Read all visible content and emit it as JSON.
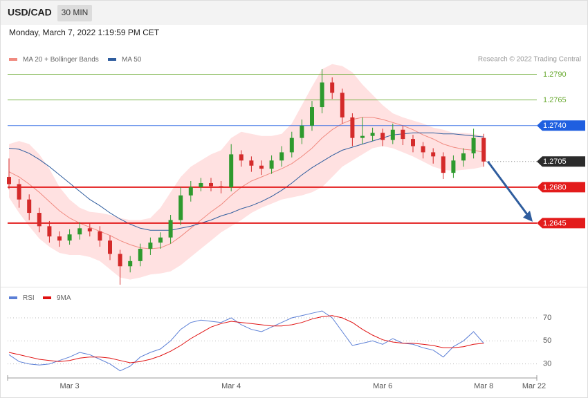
{
  "header": {
    "symbol": "USD/CAD",
    "interval": "30 MIN",
    "timestamp": "Monday, March 7, 2022 1:19:59 PM CET"
  },
  "chart_data": [
    {
      "type": "candlestick",
      "credit": "Research © 2022 Trading Central",
      "categories": [
        null,
        null,
        null,
        null,
        null,
        null,
        "Mar 3",
        null,
        null,
        null,
        null,
        null,
        null,
        null,
        null,
        null,
        null,
        null,
        null,
        null,
        null,
        null,
        "Mar 4",
        null,
        null,
        null,
        null,
        null,
        null,
        null,
        null,
        null,
        null,
        null,
        null,
        null,
        null,
        "Mar 6",
        null,
        null,
        null,
        null,
        null,
        null,
        null,
        null,
        null,
        "Mar 8"
      ],
      "x_end_label": "Mar 22",
      "open": [
        1.269,
        1.2683,
        1.2668,
        1.2655,
        1.2642,
        1.2632,
        1.2628,
        1.2634,
        1.264,
        1.2637,
        1.2628,
        1.2615,
        1.2603,
        1.2608,
        1.262,
        1.2626,
        1.2631,
        1.2648,
        1.2672,
        1.268,
        1.2684,
        1.2681,
        1.268,
        1.2712,
        1.2706,
        1.2701,
        1.2698,
        1.2706,
        1.2714,
        1.2728,
        1.274,
        1.2758,
        1.2782,
        1.2772,
        1.2748,
        1.2728,
        1.273,
        1.2733,
        1.2726,
        1.2736,
        1.2727,
        1.272,
        1.2714,
        1.271,
        1.2694,
        1.2706,
        1.2713,
        1.2728
      ],
      "high": [
        1.2708,
        1.2688,
        1.2673,
        1.266,
        1.2647,
        1.2637,
        1.2639,
        1.2646,
        1.2645,
        1.2642,
        1.2633,
        1.2619,
        1.2613,
        1.2625,
        1.2631,
        1.2636,
        1.2653,
        1.268,
        1.2686,
        1.2689,
        1.2689,
        1.2686,
        1.2722,
        1.2716,
        1.271,
        1.2706,
        1.2711,
        1.272,
        1.2734,
        1.2746,
        1.2764,
        1.2795,
        1.2787,
        1.2776,
        1.2752,
        1.2748,
        1.2738,
        1.2737,
        1.2742,
        1.274,
        1.2731,
        1.2724,
        1.2718,
        1.2714,
        1.2711,
        1.2718,
        1.2737,
        1.2732
      ],
      "low": [
        1.2678,
        1.266,
        1.2648,
        1.2636,
        1.2626,
        1.2622,
        1.2624,
        1.2629,
        1.2632,
        1.2622,
        1.2609,
        1.2585,
        1.2597,
        1.2603,
        1.2614,
        1.262,
        1.2625,
        1.2643,
        1.2666,
        1.2676,
        1.2676,
        1.2674,
        1.2676,
        1.27,
        1.2695,
        1.2692,
        1.2693,
        1.27,
        1.2709,
        1.2722,
        1.2735,
        1.2752,
        1.2766,
        1.2742,
        1.272,
        1.2722,
        1.2725,
        1.272,
        1.2722,
        1.2721,
        1.2714,
        1.2708,
        1.2703,
        1.2688,
        1.2689,
        1.27,
        1.2708,
        1.27
      ],
      "close": [
        1.2683,
        1.2668,
        1.2655,
        1.2642,
        1.2632,
        1.2628,
        1.2634,
        1.264,
        1.2637,
        1.2628,
        1.2615,
        1.2603,
        1.2608,
        1.262,
        1.2626,
        1.2631,
        1.2648,
        1.2672,
        1.268,
        1.2684,
        1.2681,
        1.268,
        1.2712,
        1.2706,
        1.2701,
        1.2698,
        1.2706,
        1.2714,
        1.2728,
        1.274,
        1.2758,
        1.2782,
        1.2772,
        1.2748,
        1.2728,
        1.273,
        1.2733,
        1.2726,
        1.2736,
        1.2727,
        1.272,
        1.2714,
        1.271,
        1.2694,
        1.2706,
        1.2713,
        1.2728,
        1.2705
      ],
      "up_color": "#2e9a2e",
      "down_color": "#d42a2a",
      "ylim": [
        1.2583,
        1.2822
      ],
      "overlays": [
        {
          "name": "MA 20 + Bollinger Bands",
          "color": "#f08a80",
          "band_color": "#ffe1e1",
          "values": [
            1.2695,
            1.269,
            1.2683,
            1.2675,
            1.2666,
            1.2657,
            1.265,
            1.2645,
            1.2641,
            1.2637,
            1.2633,
            1.2628,
            1.2624,
            1.2621,
            1.262,
            1.2621,
            1.2625,
            1.2632,
            1.264,
            1.2648,
            1.2656,
            1.2663,
            1.2672,
            1.268,
            1.2686,
            1.269,
            1.2694,
            1.2698,
            1.2703,
            1.271,
            1.2718,
            1.2728,
            1.2736,
            1.2742,
            1.2746,
            1.2748,
            1.2748,
            1.2746,
            1.2743,
            1.274,
            1.2736,
            1.2731,
            1.2727,
            1.2722,
            1.2719,
            1.2717,
            1.2716,
            1.2714
          ],
          "upper": [
            1.2722,
            1.2725,
            1.2722,
            1.2712,
            1.2698,
            1.268,
            1.2668,
            1.266,
            1.2656,
            1.2655,
            1.2653,
            1.265,
            1.2648,
            1.2648,
            1.265,
            1.266,
            1.2675,
            1.269,
            1.27,
            1.2706,
            1.2712,
            1.2716,
            1.2728,
            1.2734,
            1.2732,
            1.273,
            1.273,
            1.2732,
            1.2742,
            1.276,
            1.2778,
            1.2795,
            1.28,
            1.2798,
            1.2792,
            1.278,
            1.277,
            1.276,
            1.2752,
            1.2748,
            1.2745,
            1.2742,
            1.2738,
            1.2736,
            1.2733,
            1.2733,
            1.2732,
            1.273
          ],
          "lower": [
            1.267,
            1.2655,
            1.2642,
            1.263,
            1.2622,
            1.2616,
            1.2614,
            1.2614,
            1.2612,
            1.2608,
            1.26,
            1.2592,
            1.259,
            1.2592,
            1.2595,
            1.2596,
            1.2598,
            1.2604,
            1.2612,
            1.262,
            1.2628,
            1.2636,
            1.2642,
            1.2648,
            1.2655,
            1.266,
            1.2664,
            1.2668,
            1.267,
            1.2672,
            1.2675,
            1.268,
            1.269,
            1.27,
            1.2706,
            1.2712,
            1.2718,
            1.272,
            1.2718,
            1.2714,
            1.271,
            1.2705,
            1.27,
            1.2697,
            1.2696,
            1.2697,
            1.2698,
            1.27
          ]
        },
        {
          "name": "MA 50",
          "color": "#2f5d9e",
          "values": [
            1.2718,
            1.2717,
            1.2713,
            1.2707,
            1.27,
            1.2692,
            1.2684,
            1.2676,
            1.2668,
            1.2662,
            1.2655,
            1.2649,
            1.2644,
            1.264,
            1.2638,
            1.2638,
            1.2638,
            1.264,
            1.2642,
            1.2645,
            1.2648,
            1.2652,
            1.2655,
            1.2659,
            1.2662,
            1.2666,
            1.2671,
            1.2677,
            1.2684,
            1.2692,
            1.2699,
            1.2705,
            1.2711,
            1.2716,
            1.2719,
            1.2722,
            1.2725,
            1.2728,
            1.2731,
            1.2732,
            1.2733,
            1.2733,
            1.2733,
            1.2732,
            1.2732,
            1.2731,
            1.273,
            1.2729
          ]
        }
      ],
      "levels": [
        {
          "value": 1.279,
          "label": "1.2790",
          "color": "#6aaa32",
          "tag": false,
          "line": "solid"
        },
        {
          "value": 1.2765,
          "label": "1.2765",
          "color": "#6aaa32",
          "tag": false,
          "line": "solid"
        },
        {
          "value": 1.274,
          "label": "1.2740",
          "color": "#1f5fe0",
          "tag": true,
          "line": "solid"
        },
        {
          "value": 1.2705,
          "label": "1.2705",
          "color": "#2b2b2b",
          "tag": true,
          "line": "dotted"
        },
        {
          "value": 1.268,
          "label": "1.2680",
          "color": "#e31b1b",
          "tag": true,
          "line": "bold"
        },
        {
          "value": 1.2645,
          "label": "1.2645",
          "color": "#e31b1b",
          "tag": true,
          "line": "bold"
        }
      ]
    },
    {
      "type": "line",
      "ylim": [
        19,
        82
      ],
      "yticks": [
        30,
        50,
        70
      ],
      "grid": true,
      "series": [
        {
          "name": "RSI",
          "color": "#5b7fd6",
          "values": [
            38,
            32,
            30,
            29,
            30,
            33,
            36,
            40,
            38,
            34,
            30,
            24,
            28,
            36,
            40,
            43,
            50,
            60,
            66,
            68,
            67,
            66,
            70,
            64,
            60,
            58,
            62,
            66,
            70,
            72,
            74,
            76,
            70,
            58,
            46,
            48,
            50,
            47,
            52,
            48,
            47,
            44,
            42,
            36,
            45,
            50,
            58,
            48
          ]
        },
        {
          "name": "9MA",
          "color": "#e01010",
          "values": [
            40,
            38,
            36,
            34,
            33,
            32,
            33,
            35,
            36,
            36,
            35,
            33,
            31,
            32,
            34,
            37,
            41,
            46,
            52,
            57,
            62,
            65,
            67,
            66,
            65,
            64,
            63,
            63,
            64,
            66,
            69,
            71,
            72,
            70,
            66,
            60,
            55,
            51,
            49,
            48,
            48,
            47,
            46,
            44,
            44,
            45,
            47,
            48
          ]
        }
      ]
    }
  ]
}
